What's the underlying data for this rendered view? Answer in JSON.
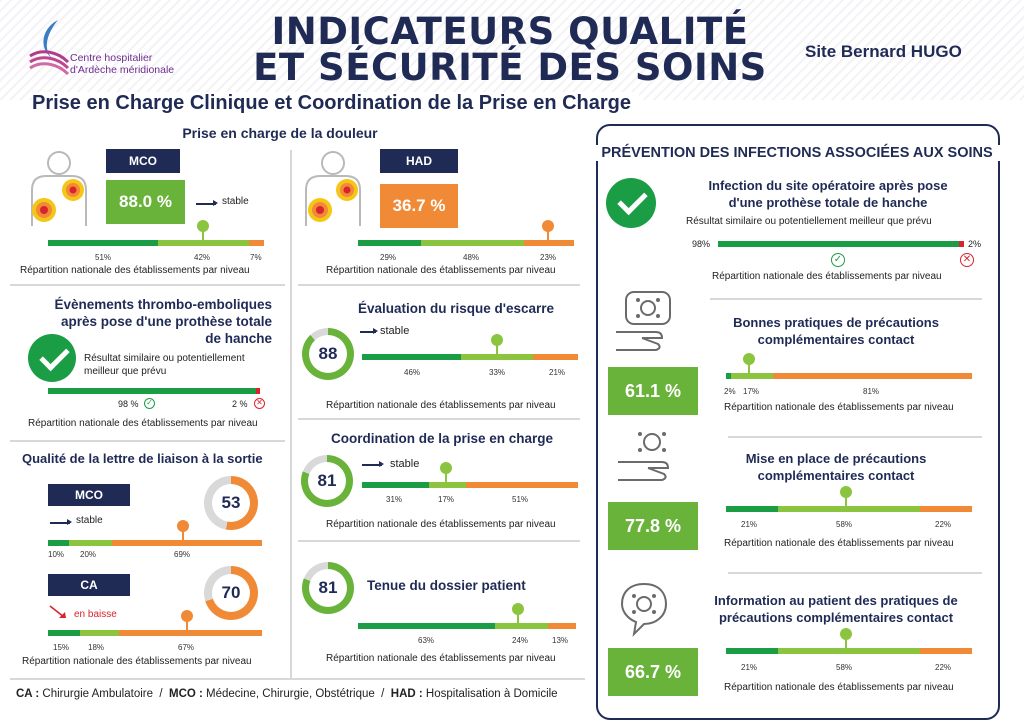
{
  "header": {
    "logo_line1": "Centre hospitalier",
    "logo_line2": "d'Ardèche méridionale",
    "title_line1": "INDICATEURS QUALITÉ",
    "title_line2": "ET SÉCURITÉ DES SOINS",
    "site": "Site Bernard HUGO",
    "subtitle": "Prise en Charge Clinique et Coordination de la Prise en Charge"
  },
  "common": {
    "nat": "Répartition nationale des établissements par niveau",
    "stable": "stable",
    "baisse": "en baisse",
    "similaire": "Résultat similaire ou potentiellement meilleur que prévu",
    "similaire_l1": "Résultat similaire ou potentiellement",
    "similaire_l2": "meilleur que prévu"
  },
  "douleur": {
    "title": "Prise en charge de la douleur",
    "mco": {
      "tag": "MCO",
      "value": "88.0 %",
      "trend": "stable",
      "dist": [
        "51%",
        "42%",
        "7%"
      ]
    },
    "had": {
      "tag": "HAD",
      "value": "36.7 %",
      "dist": [
        "29%",
        "48%",
        "23%"
      ]
    }
  },
  "thrombo": {
    "title_l1": "Évènements thrombo-emboliques",
    "title_l2": "après pose d'une prothèse totale",
    "title_l3": "de hanche",
    "left": "98 %",
    "right": "2 %"
  },
  "escarre": {
    "title": "Évaluation du risque d'escarre",
    "score": "88",
    "trend": "stable",
    "dist": [
      "46%",
      "33%",
      "21%"
    ]
  },
  "coord": {
    "title": "Coordination de la prise en charge",
    "score": "81",
    "trend": "stable",
    "dist": [
      "31%",
      "17%",
      "51%"
    ]
  },
  "dossier": {
    "title": "Tenue du dossier patient",
    "score": "81",
    "dist": [
      "63%",
      "24%",
      "13%"
    ]
  },
  "lettre": {
    "title": "Qualité de la lettre de liaison à la sortie",
    "mco": {
      "tag": "MCO",
      "score": "53",
      "trend": "stable",
      "dist": [
        "10%",
        "20%",
        "69%"
      ]
    },
    "ca": {
      "tag": "CA",
      "score": "70",
      "trend": "en baisse",
      "dist": [
        "15%",
        "18%",
        "67%"
      ]
    }
  },
  "prev": {
    "title": "PRÉVENTION DES INFECTIONS ASSOCIÉES AUX SOINS",
    "iso": {
      "title_l1": "Infection du site opératoire après pose",
      "title_l2": "d'une prothèse totale de hanche",
      "left": "98%",
      "right": "2%"
    },
    "bp": {
      "title_l1": "Bonnes pratiques de précautions",
      "title_l2": "complémentaires contact",
      "value": "61.1 %",
      "dist": [
        "2%",
        "17%",
        "81%"
      ]
    },
    "mp": {
      "title_l1": "Mise en place de précautions",
      "title_l2": "complémentaires contact",
      "value": "77.8 %",
      "dist": [
        "21%",
        "58%",
        "22%"
      ]
    },
    "info": {
      "title_l1": "Information au patient des pratiques de",
      "title_l2": "précautions complémentaires contact",
      "value": "66.7 %",
      "dist": [
        "21%",
        "58%",
        "22%"
      ]
    }
  },
  "footer": {
    "ca_abbr": "CA :",
    "ca": " Chirurgie Ambulatoire  /  ",
    "mco_abbr": "MCO :",
    "mco": " Médecine, Chirurgie, Obstétrique  /  ",
    "had_abbr": "HAD :",
    "had": " Hospitalisation à Domicile"
  }
}
